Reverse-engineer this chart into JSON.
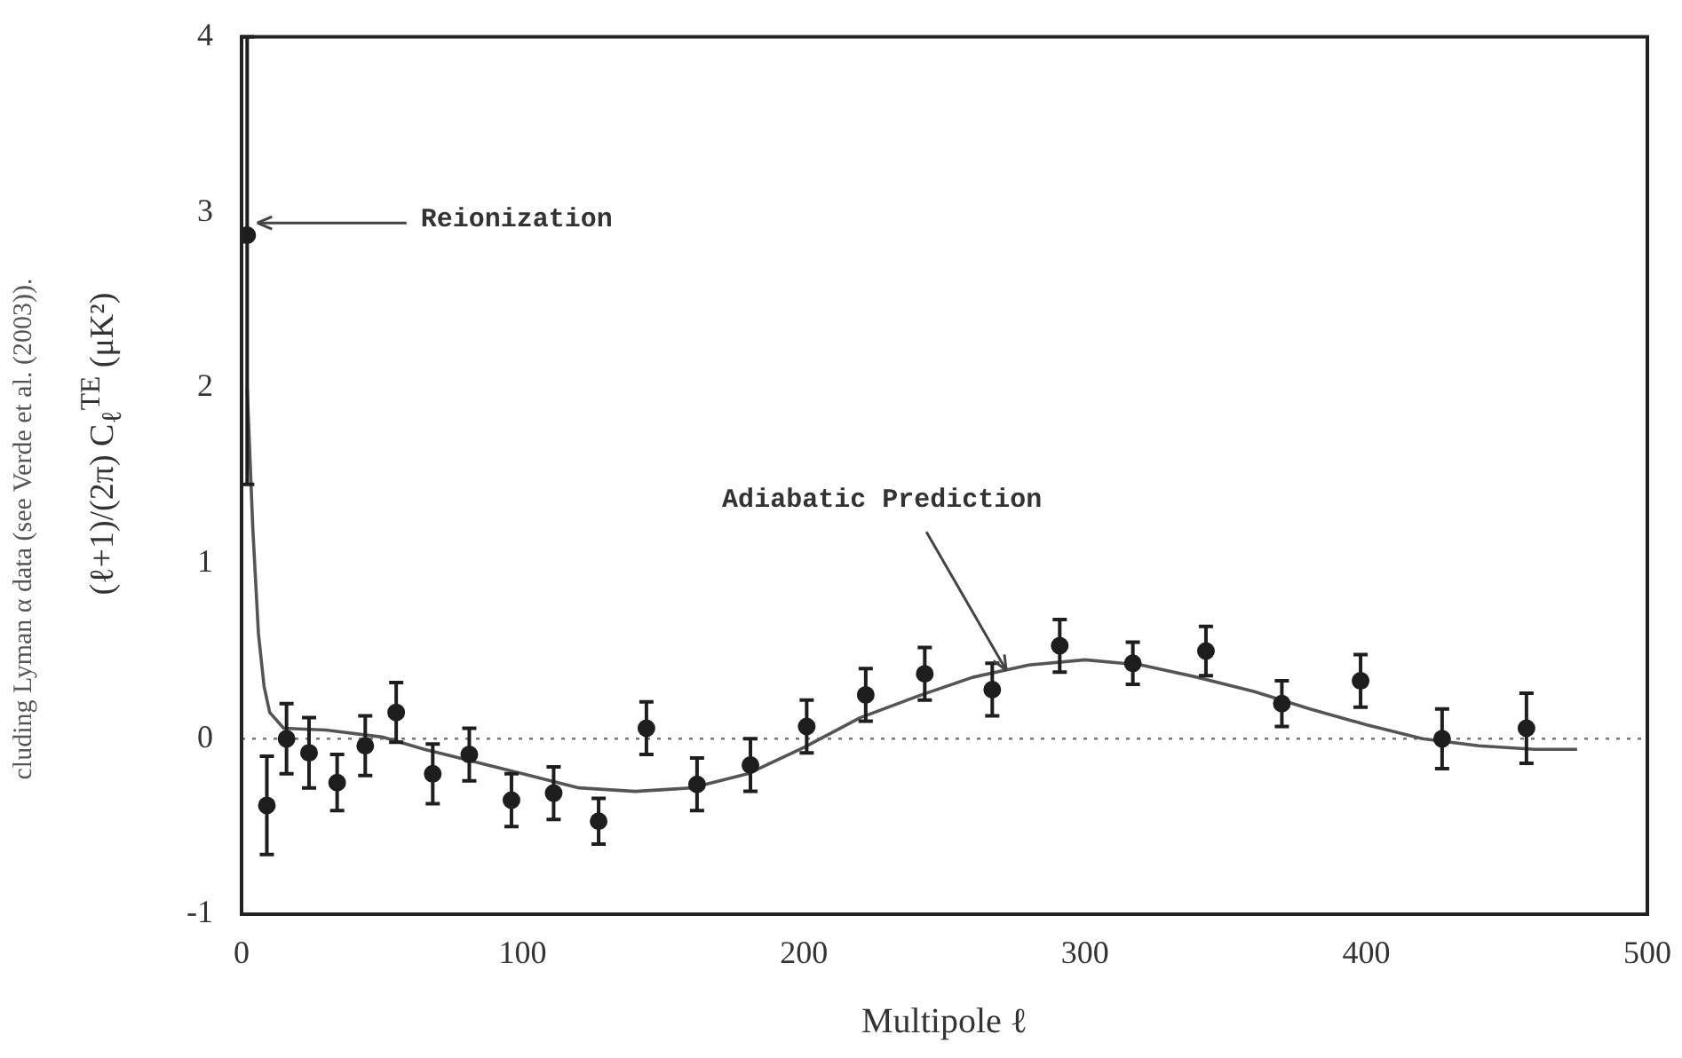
{
  "chart_data": {
    "type": "scatter",
    "xlabel": "Multipole ℓ",
    "ylabel": "(ℓ+1)/(2π) C$_{ℓ}$$^{TE}$ (μK²)",
    "xlim": [
      0,
      500
    ],
    "xticks": [
      0,
      100,
      200,
      300,
      400,
      500
    ],
    "ylim": [
      -1,
      4
    ],
    "yticks": [
      -1,
      0,
      1,
      2,
      3,
      4
    ],
    "grid": false,
    "legend": false,
    "marker": "circle",
    "ref_lines": [
      {
        "axis": "y",
        "value": 0,
        "line_style": "dotted",
        "color": "#777777"
      }
    ],
    "annotations": [
      {
        "text": "Reionization",
        "x": 5.6,
        "y": 2.94
      },
      {
        "text": "Adiabatic Prediction",
        "x": 272,
        "y": 0.39
      },
      "cluding Lyman α data (see Verde et al. (2003))."
    ],
    "series": [
      {
        "type": "scatter",
        "color": "#1e1e1e",
        "x": [
          2,
          9,
          16,
          24,
          34,
          44,
          55,
          68,
          81,
          96,
          111,
          127,
          144,
          162,
          181,
          201,
          222,
          243,
          267,
          291,
          317,
          343,
          370,
          398,
          427,
          457
        ],
        "values": [
          2.87,
          -0.38,
          0.0,
          -0.08,
          -0.25,
          -0.04,
          0.15,
          -0.2,
          -0.09,
          -0.35,
          -0.31,
          -0.47,
          0.06,
          -0.26,
          -0.15,
          0.07,
          0.25,
          0.37,
          0.28,
          0.53,
          0.43,
          0.5,
          0.2,
          0.33,
          0.0,
          0.06
        ],
        "errors": [
          [
            1.45,
            4.0
          ],
          0.28,
          0.2,
          0.2,
          0.16,
          0.17,
          0.17,
          0.17,
          0.15,
          0.15,
          0.15,
          0.13,
          0.15,
          0.15,
          0.15,
          0.15,
          0.15,
          0.15,
          0.15,
          0.15,
          0.12,
          0.14,
          0.13,
          0.15,
          0.17,
          0.2
        ]
      },
      {
        "type": "line",
        "color": "#555555",
        "marker": "none",
        "x": [
          2,
          4,
          6,
          8,
          10,
          15,
          30,
          50,
          65,
          80,
          100,
          120,
          140,
          160,
          180,
          200,
          220,
          240,
          260,
          280,
          300,
          320,
          340,
          360,
          380,
          400,
          420,
          440,
          460,
          475
        ],
        "values": [
          2.0,
          1.2,
          0.6,
          0.3,
          0.15,
          0.06,
          0.05,
          0.01,
          -0.06,
          -0.12,
          -0.2,
          -0.28,
          -0.3,
          -0.28,
          -0.2,
          -0.05,
          0.12,
          0.24,
          0.35,
          0.42,
          0.45,
          0.42,
          0.35,
          0.27,
          0.17,
          0.08,
          0.0,
          -0.04,
          -0.06,
          -0.06
        ]
      }
    ]
  }
}
